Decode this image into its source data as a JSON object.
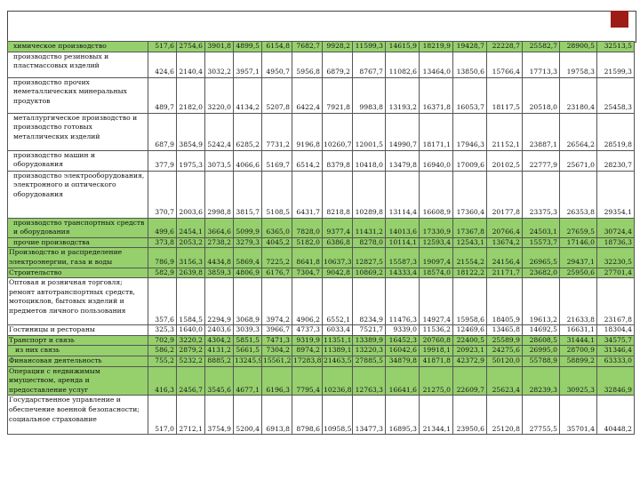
{
  "colors": {
    "row_highlight": "#96d06d",
    "row_plain": "#ffffff",
    "corner_mark": "#9c1c18"
  },
  "rows": [
    {
      "label": "химическое производство",
      "style": "green",
      "indent": "normal",
      "values": [
        "517,6",
        "2754,6",
        "3901,8",
        "4899,5",
        "6154,8",
        "7682,7",
        "9928,2",
        "11599,3",
        "14615,9",
        "18219,9",
        "19428,7",
        "22228,7",
        "25582,7",
        "28900,5",
        "32513,5"
      ]
    },
    {
      "label": "производство резиновых и пластмассовых изделий",
      "style": "white",
      "indent": "normal",
      "values": [
        "424,6",
        "2140,4",
        "3032,2",
        "3957,1",
        "4950,7",
        "5956,8",
        "6879,2",
        "8767,7",
        "11082,6",
        "13464,0",
        "13850,6",
        "15766,4",
        "17713,3",
        "19758,3",
        "21599,3"
      ]
    },
    {
      "label": "производство прочих неметаллических минеральных продуктов",
      "style": "white",
      "indent": "normal",
      "values": [
        "489,7",
        "2182,0",
        "3220,0",
        "4134,2",
        "5207,8",
        "6422,4",
        "7921,8",
        "9983,8",
        "13193,2",
        "16371,8",
        "16053,7",
        "18117,5",
        "20518,0",
        "23180,4",
        "25458,3"
      ]
    },
    {
      "label": "металлургическое производство и производство готовых металлических изделий",
      "style": "white",
      "indent": "normal",
      "values": [
        "687,9",
        "3854,9",
        "5242,4",
        "6285,2",
        "7731,2",
        "9196,8",
        "10260,7",
        "12001,5",
        "14990,7",
        "18171,1",
        "17946,3",
        "21152,1",
        "23887,1",
        "26564,2",
        "28519,8"
      ]
    },
    {
      "label": "производство машин и оборудования",
      "style": "white",
      "indent": "normal",
      "values": [
        "377,9",
        "1975,3",
        "3073,5",
        "4066,6",
        "5169,7",
        "6514,2",
        "8379,8",
        "10418,0",
        "13479,8",
        "16940,0",
        "17009,6",
        "20102,5",
        "22777,9",
        "25671,0",
        "28230,7"
      ]
    },
    {
      "label": "производство электрооборудования, электронного и оптического оборудования",
      "style": "white",
      "indent": "normal",
      "values": [
        "370,7",
        "2003,6",
        "2998,8",
        "3815,7",
        "5108,5",
        "6431,7",
        "8218,8",
        "10289,8",
        "13114,4",
        "16608,9",
        "17360,4",
        "20177,8",
        "23375,3",
        "26353,8",
        "29354,1"
      ]
    },
    {
      "label": "производство транспортных средств и оборудования",
      "style": "green",
      "indent": "normal",
      "values": [
        "499,6",
        "2454,1",
        "3664,6",
        "5099,9",
        "6365,0",
        "7828,0",
        "9377,4",
        "11431,2",
        "14013,6",
        "17330,9",
        "17367,8",
        "20766,4",
        "24503,1",
        "27659,5",
        "30724,4"
      ]
    },
    {
      "label": "прочие производства",
      "style": "green",
      "indent": "normal",
      "values": [
        "373,8",
        "2053,2",
        "2738,2",
        "3279,3",
        "4045,2",
        "5182,0",
        "6386,8",
        "8278,0",
        "10114,1",
        "12593,4",
        "12543,1",
        "13674,2",
        "15573,7",
        "17146,0",
        "18736,3"
      ]
    },
    {
      "label": "Производство и распределение электроэнергии, газа и воды",
      "style": "green",
      "indent": "flush",
      "values": [
        "786,9",
        "3156,3",
        "4434,8",
        "5869,4",
        "7225,2",
        "8641,8",
        "10637,3",
        "12827,5",
        "15587,3",
        "19097,4",
        "21554,2",
        "24156,4",
        "26965,5",
        "29437,1",
        "32230,5"
      ]
    },
    {
      "label": "Строительство",
      "style": "green",
      "indent": "flush",
      "values": [
        "582,9",
        "2639,8",
        "3859,3",
        "4806,9",
        "6176,7",
        "7304,7",
        "9042,8",
        "10869,2",
        "14333,4",
        "18574,0",
        "18122,2",
        "21171,7",
        "23682,0",
        "25950,6",
        "27701,4"
      ]
    },
    {
      "label": "Оптовая и розничная торговля; ремонт автотранспортных средств, мотоциклов, бытовых изделий и предметов личного пользования",
      "style": "white",
      "indent": "flush",
      "values": [
        "357,6",
        "1584,5",
        "2294,9",
        "3068,9",
        "3974,2",
        "4906,2",
        "6552,1",
        "8234,9",
        "11476,3",
        "14927,4",
        "15958,6",
        "18405,9",
        "19613,2",
        "21633,8",
        "23167,8"
      ]
    },
    {
      "label": "Гостиницы и рестораны",
      "style": "white",
      "indent": "flush",
      "values": [
        "325,3",
        "1640,0",
        "2403,6",
        "3039,3",
        "3966,7",
        "4737,3",
        "6033,4",
        "7521,7",
        "9339,0",
        "11536,2",
        "12469,6",
        "13465,8",
        "14692,5",
        "16631,1",
        "18304,4"
      ]
    },
    {
      "label": "Транспорт и связь",
      "style": "green",
      "indent": "flush",
      "values": [
        "702,9",
        "3220,2",
        "4304,2",
        "5851,5",
        "7471,3",
        "9319,9",
        "11351,1",
        "13389,9",
        "16452,3",
        "20760,8",
        "22400,5",
        "25589,9",
        "28608,5",
        "31444,1",
        "34575,7"
      ]
    },
    {
      "label": "из них связь",
      "style": "green",
      "indent": "sub",
      "values": [
        "586,2",
        "2879,2",
        "4131,2",
        "5661,5",
        "7304,2",
        "8974,2",
        "11389,1",
        "13220,3",
        "16042,6",
        "19918,1",
        "20923,1",
        "24275,6",
        "26995,0",
        "28700,9",
        "31346,4"
      ]
    },
    {
      "label": "Финансовая деятельность",
      "style": "green",
      "indent": "flush",
      "values": [
        "755,2",
        "5232,2",
        "8885,2",
        "13245,9",
        "15561,2",
        "17283,8",
        "21463,5",
        "27885,5",
        "34879,8",
        "41871,8",
        "42372,9",
        "50120,0",
        "55788,9",
        "58899,2",
        "63333,0"
      ]
    },
    {
      "label": "Операции с недвижимым имуществом, аренда и предоставление услуг",
      "style": "green",
      "indent": "flush",
      "values": [
        "416,3",
        "2456,7",
        "3545,6",
        "4677,1",
        "6196,3",
        "7795,4",
        "10236,8",
        "12763,3",
        "16641,6",
        "21275,0",
        "22609,7",
        "25623,4",
        "28239,3",
        "30925,3",
        "32846,9"
      ]
    },
    {
      "label": "Государственное управление и обеспечение военной безопасности; социальное страхование",
      "style": "white",
      "indent": "flush",
      "values": [
        "517,0",
        "2712,1",
        "3754,9",
        "5200,4",
        "6913,8",
        "8798,6",
        "10958,5",
        "13477,3",
        "16895,3",
        "21344,1",
        "23950,6",
        "25120,8",
        "27755,5",
        "35701,4",
        "40448,2"
      ]
    }
  ]
}
